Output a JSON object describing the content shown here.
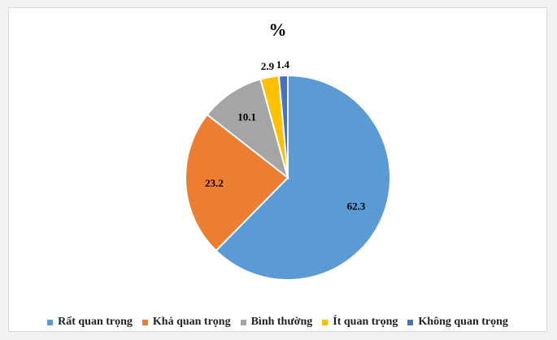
{
  "chart_data": {
    "type": "pie",
    "title": "%",
    "categories": [
      "Rất quan trọng",
      "Khá quan trọng",
      "Bình thường",
      "Ít quan trọng",
      "Không quan trọng"
    ],
    "values": [
      62.3,
      23.2,
      10.1,
      2.9,
      1.4
    ],
    "value_labels": [
      "62.3",
      "23.2",
      "10.1",
      "2.9",
      "1.4"
    ],
    "colors": [
      "#5b9bd5",
      "#ed7d31",
      "#a5a5a5",
      "#ffc000",
      "#4472c4"
    ],
    "legend_position": "bottom",
    "start_angle": "top, clockwise"
  }
}
